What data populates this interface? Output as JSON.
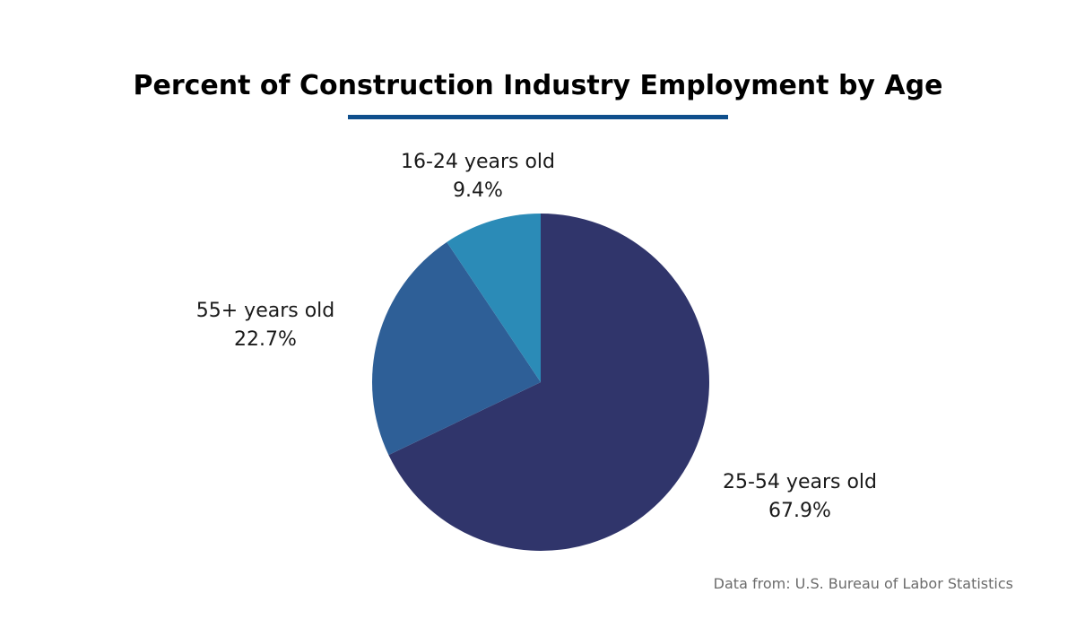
{
  "chart_data": {
    "type": "pie",
    "title": "Percent of Construction Industry Employment by Age",
    "source": "Data from:  U.S. Bureau of Labor Statistics",
    "legend": "none",
    "slices": [
      {
        "label": "25-54 years old",
        "value": 67.9,
        "value_label": "67.9%",
        "color": "#30356b"
      },
      {
        "label": "55+ years old",
        "value": 22.7,
        "value_label": "22.7%",
        "color": "#2e5f97"
      },
      {
        "label": "16-24 years old",
        "value": 9.4,
        "value_label": "9.4%",
        "color": "#2b8bb7"
      }
    ]
  },
  "colors": {
    "title_underline": "#0f4f8c",
    "background": "#ffffff"
  }
}
